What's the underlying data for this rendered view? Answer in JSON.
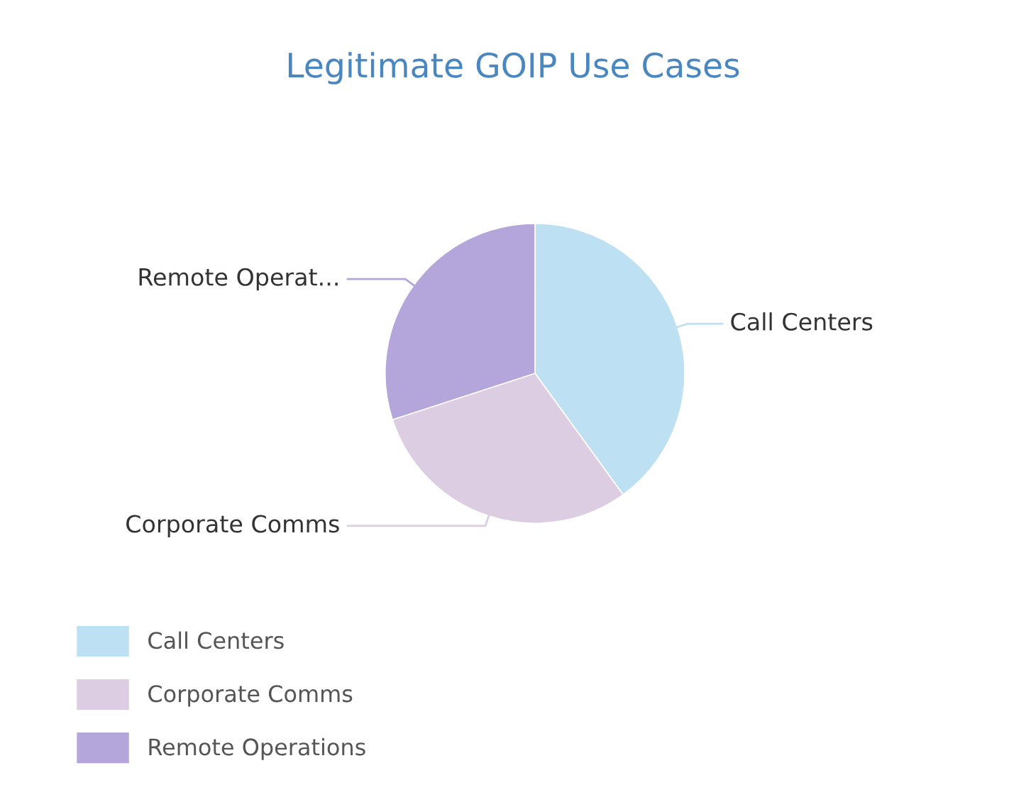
{
  "chart_data": {
    "type": "pie",
    "title": "Legitimate GOIP Use Cases",
    "categories": [
      "Call Centers",
      "Corporate Comms",
      "Remote Operations"
    ],
    "values": [
      40,
      30,
      30
    ],
    "colors": [
      "#bee0f3",
      "#dccde3",
      "#b4a5da"
    ],
    "annotations": [
      "Call Centers",
      "Corporate Comms",
      "Remote Operat..."
    ],
    "legend": "bottom left"
  }
}
